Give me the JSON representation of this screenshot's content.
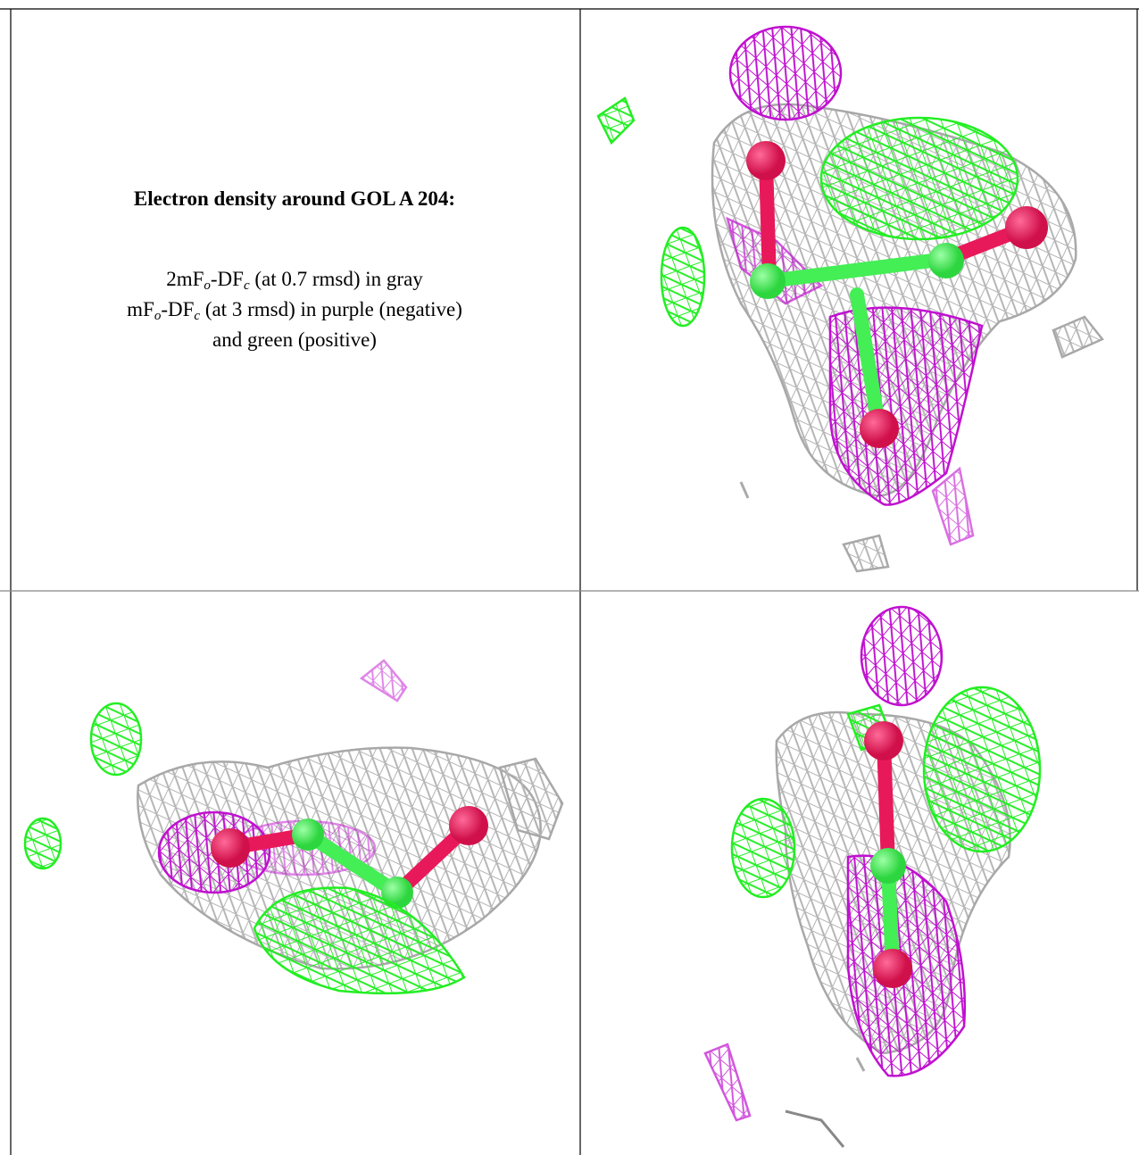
{
  "caption": {
    "title": "Electron density around GOL A 204:",
    "lines": [
      [
        "2mF",
        {
          "sub": "o"
        },
        "-DF",
        {
          "sub": "c"
        },
        " (at 0.7 rmsd) in gray"
      ],
      [
        "mF",
        {
          "sub": "o"
        },
        "-DF",
        {
          "sub": "c"
        },
        " (at 3 rmsd) in purple (negative)"
      ],
      [
        "and green (positive)"
      ]
    ]
  }
}
